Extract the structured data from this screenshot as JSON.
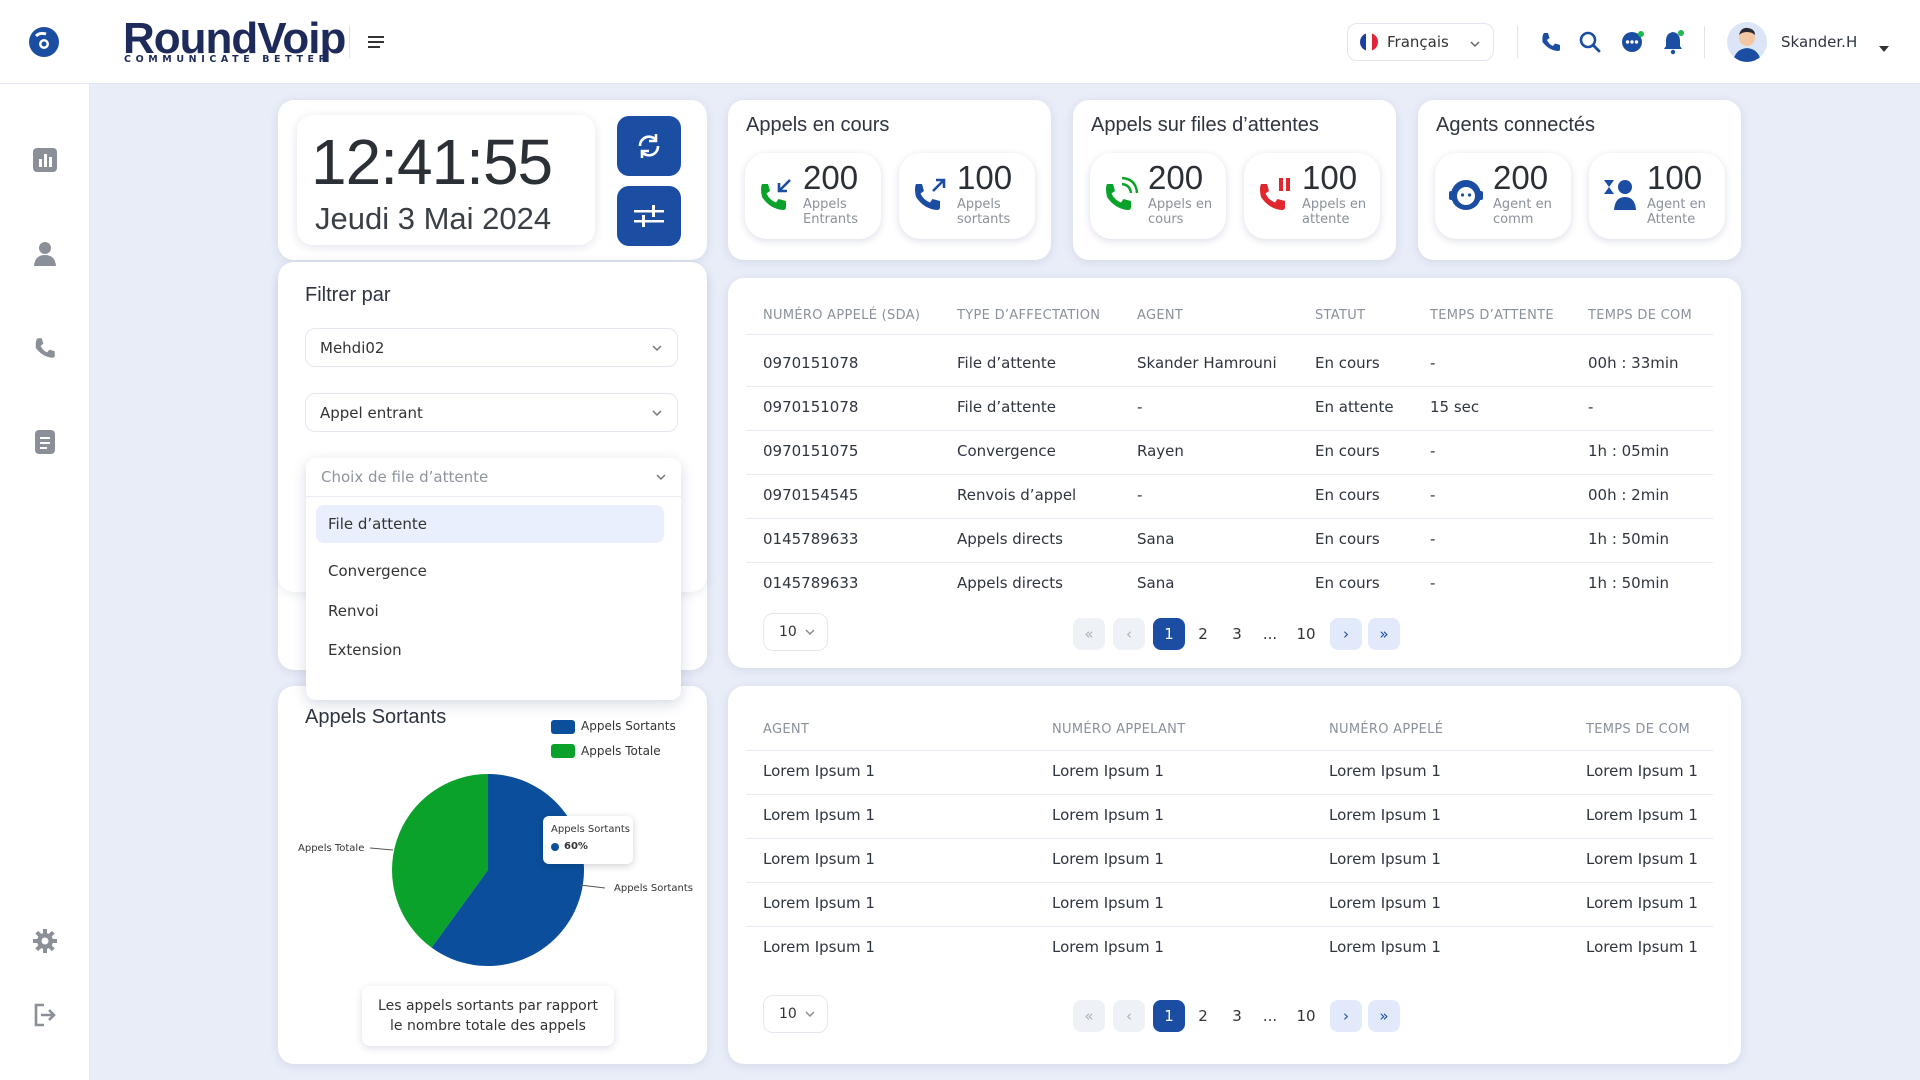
{
  "header": {
    "logo_main": "RoundVoip",
    "logo_sub": "COMMUNICATE BETTER",
    "language": "Français",
    "user_name": "Skander.H"
  },
  "clock": {
    "time": "12:41:55",
    "date": "Jeudi 3 Mai 2024"
  },
  "stats": [
    {
      "title": "Appels en cours",
      "items": [
        {
          "value": "200",
          "label": "Appels Entrants"
        },
        {
          "value": "100",
          "label": "Appels sortants"
        }
      ]
    },
    {
      "title": "Appels sur files d’attentes",
      "items": [
        {
          "value": "200",
          "label": "Appels en cours"
        },
        {
          "value": "100",
          "label": "Appels en attente"
        }
      ]
    },
    {
      "title": "Agents connectés",
      "items": [
        {
          "value": "200",
          "label": "Agent en comm"
        },
        {
          "value": "100",
          "label": "Agent en Attente"
        }
      ]
    }
  ],
  "filter": {
    "title": "Filtrer par",
    "agent_value": "Mehdi02",
    "call_type_value": "Appel entrant",
    "queue_placeholder": "Choix de file d’attente",
    "options": [
      "File d’attente",
      "Convergence",
      "Renvoi",
      "Extension"
    ]
  },
  "calls_table": {
    "headers": [
      "NUMÉRO APPELÉ (SDA)",
      "TYPE D’AFFECTATION",
      "AGENT",
      "STATUT",
      "TEMPS D’ATTENTE",
      "TEMPS DE COM"
    ],
    "rows": [
      [
        "0970151078",
        "File d’attente",
        "Skander Hamrouni",
        "En cours",
        "-",
        "00h : 33min"
      ],
      [
        "0970151078",
        "File d’attente",
        "-",
        "En attente",
        "15 sec",
        "-"
      ],
      [
        "0970151075",
        "Convergence",
        "Rayen",
        "En cours",
        "-",
        "1h : 05min"
      ],
      [
        "0970154545",
        "Renvois d’appel",
        "-",
        "En cours",
        "-",
        "00h : 2min"
      ],
      [
        "0145789633",
        "Appels directs",
        "Sana",
        "En cours",
        "-",
        "1h : 50min"
      ],
      [
        "0145789633",
        "Appels directs",
        "Sana",
        "En cours",
        "-",
        "1h : 50min"
      ]
    ],
    "page_size": "10",
    "pages": [
      "1",
      "2",
      "3",
      "...",
      "10"
    ]
  },
  "agents_table": {
    "headers": [
      "AGENT",
      "NUMÉRO APPELANT",
      "NUMÉRO APPELÉ",
      "TEMPS DE COM"
    ],
    "rows": [
      [
        "Lorem Ipsum 1",
        "Lorem Ipsum 1",
        "Lorem Ipsum 1",
        "Lorem Ipsum 1"
      ],
      [
        "Lorem Ipsum 1",
        "Lorem Ipsum 1",
        "Lorem Ipsum 1",
        "Lorem Ipsum 1"
      ],
      [
        "Lorem Ipsum 1",
        "Lorem Ipsum 1",
        "Lorem Ipsum 1",
        "Lorem Ipsum 1"
      ],
      [
        "Lorem Ipsum 1",
        "Lorem Ipsum 1",
        "Lorem Ipsum 1",
        "Lorem Ipsum 1"
      ],
      [
        "Lorem Ipsum 1",
        "Lorem Ipsum 1",
        "Lorem Ipsum 1",
        "Lorem Ipsum 1"
      ]
    ],
    "page_size": "10",
    "pages": [
      "1",
      "2",
      "3",
      "...",
      "10"
    ]
  },
  "pie": {
    "title": "Appels Sortants",
    "legend": [
      "Appels Sortants",
      "Appels Totale"
    ],
    "colors": {
      "sortants": "#0b4f9c",
      "totale": "#0ba22b"
    },
    "tooltip_label": "Appels Sortants",
    "tooltip_value": "60%",
    "label_left": "Appels Totale",
    "label_right": "Appels Sortants",
    "caption_line1": "Les appels sortants par rapport",
    "caption_line2": "le nombre totale  des appels"
  },
  "chart_data": {
    "type": "pie",
    "title": "Appels Sortants",
    "series": [
      {
        "name": "Appels Sortants",
        "value": 60,
        "color": "#0b4f9c"
      },
      {
        "name": "Appels Totale",
        "value": 40,
        "color": "#0ba22b"
      }
    ],
    "legend": "top-right"
  }
}
